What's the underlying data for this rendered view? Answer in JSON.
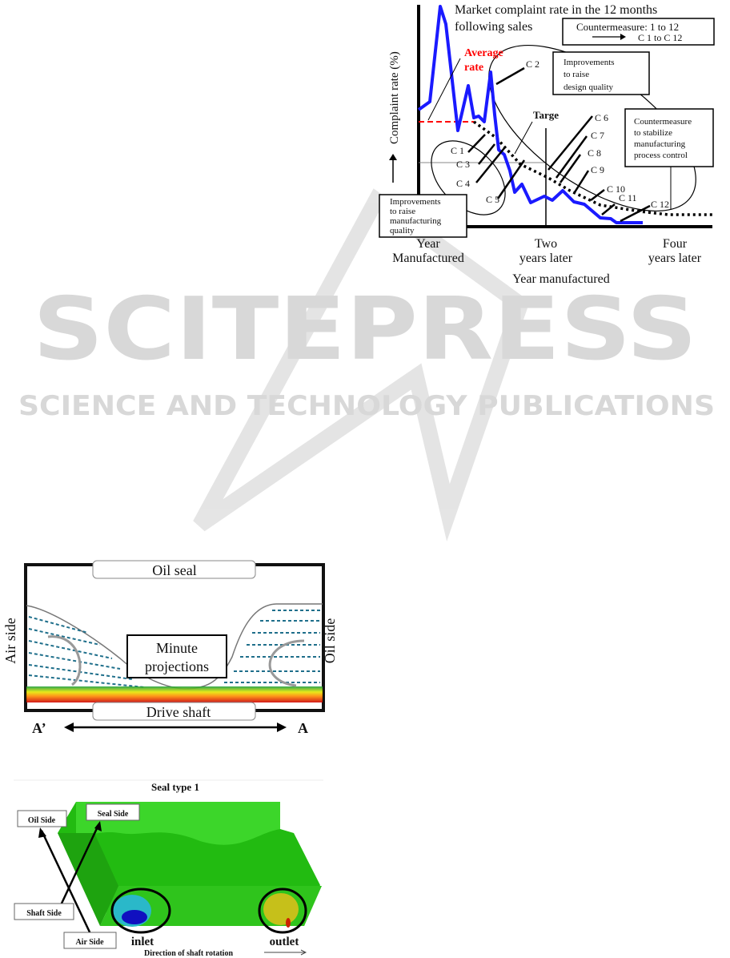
{
  "watermark": {
    "title": "SCITEPRESS",
    "subtitle": "SCIENCE AND TECHNOLOGY PUBLICATIONS"
  },
  "figure_complaint": {
    "title_line1": "Market complaint rate in the 12 months",
    "title_line2": "following sales",
    "legend_line1": "Countermeasure: 1 to 12",
    "legend_line2": "C 1 to C 12",
    "ylabel": "Complaint rate (%)",
    "xlabel": "Year manufactured",
    "xticks": [
      [
        "Year",
        "Manufactured"
      ],
      [
        "Two",
        "years later"
      ],
      [
        "Four",
        "years later"
      ]
    ],
    "average_rate": [
      "Average",
      "rate"
    ],
    "target": "Targe",
    "design_box": [
      "Improvements",
      "to raise",
      "design quality"
    ],
    "process_box": [
      "Countermeasure",
      "to stabilize",
      "manufacturing",
      "process control"
    ],
    "manufacturing_box": [
      "Improvements",
      "to raise",
      "manufacturing",
      "quality"
    ],
    "countermeasures": [
      "C 1",
      "C 2",
      "C 3",
      "C 4",
      "C 5",
      "C 6",
      "C 7",
      "C 8",
      "C 9",
      "C 10",
      "C 11",
      "C 12"
    ],
    "colors": {
      "actual": "#1a1aff",
      "average": "#ff0000",
      "target": "#000000"
    }
  },
  "figure_seal": {
    "top_label": "Oil seal",
    "bottom_label": "Drive shaft",
    "left_label": "Air side",
    "right_label": "Oil side",
    "center_label": [
      "Minute",
      "projections"
    ],
    "axis_left": "A’",
    "axis_right": "A"
  },
  "figure_seal_type": {
    "title": "Seal type 1",
    "oil_side": "Oil Side",
    "seal_side": "Seal Side",
    "shaft_side": "Shaft Side",
    "air_side": "Air Side",
    "inlet": "inlet",
    "outlet": "outlet",
    "direction": "Direction of shaft rotation"
  }
}
